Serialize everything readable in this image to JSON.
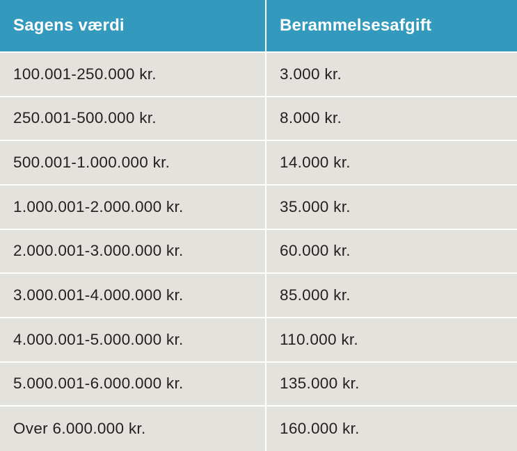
{
  "table": {
    "headers": [
      "Sagens værdi",
      "Berammelsesafgift"
    ],
    "rows": [
      [
        "100.001-250.000 kr.",
        "3.000 kr."
      ],
      [
        "250.001-500.000 kr.",
        "8.000 kr."
      ],
      [
        "500.001-1.000.000 kr.",
        "14.000 kr."
      ],
      [
        "1.000.001-2.000.000 kr.",
        "35.000 kr."
      ],
      [
        "2.000.001-3.000.000 kr.",
        "60.000 kr."
      ],
      [
        "3.000.001-4.000.000 kr.",
        "85.000 kr."
      ],
      [
        "4.000.001-5.000.000 kr.",
        "110.000 kr."
      ],
      [
        "5.000.001-6.000.000 kr.",
        "135.000 kr."
      ],
      [
        "Over 6.000.000 kr.",
        "160.000 kr."
      ]
    ]
  },
  "colors": {
    "header_background": "#3399bd",
    "header_text": "#ffffff",
    "row_background": "#e4e2dd",
    "row_text": "#231f20",
    "grid_lines": "#ffffff"
  }
}
